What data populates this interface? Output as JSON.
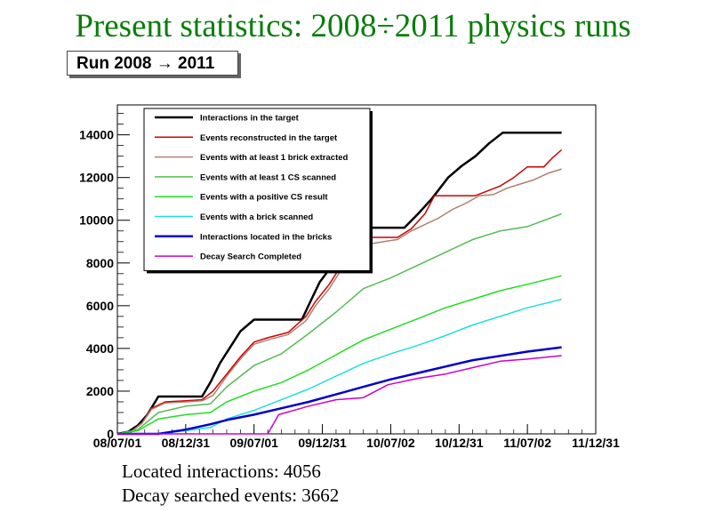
{
  "slide_title": "Present statistics: 2008÷2011 physics runs",
  "run_label": "Run 2008 → 2011",
  "stats": {
    "located": "Located interactions: 4056",
    "decay": "Decay searched events: 3662"
  },
  "chart_data": {
    "type": "line",
    "title": "Run 2008 → 2011",
    "xlabel": "",
    "ylabel": "",
    "x_tick_labels": [
      "08/07/01",
      "08/12/31",
      "09/07/01",
      "09/12/31",
      "10/07/02",
      "10/12/31",
      "11/07/02",
      "11/12/31"
    ],
    "y_ticks": [
      0,
      2000,
      4000,
      6000,
      8000,
      10000,
      12000,
      14000
    ],
    "y_tick_labels": [
      "0",
      "2000",
      "4000",
      "6000",
      "8000",
      "10000",
      "12000",
      "14000"
    ],
    "xlim": [
      0,
      3.5
    ],
    "ylim": [
      0,
      15400
    ],
    "x_unit": "years since 08/07/01",
    "grid": false,
    "legend_position": "top-left",
    "series": [
      {
        "name": "Interactions in the target",
        "color": "#000000",
        "width": 2.5,
        "x": [
          0,
          0.08,
          0.15,
          0.22,
          0.3,
          0.45,
          0.55,
          0.62,
          0.68,
          0.75,
          0.82,
          0.9,
          1.0,
          1.12,
          1.25,
          1.35,
          1.42,
          1.48,
          1.55,
          1.62,
          1.68,
          1.78,
          1.88,
          2.0,
          2.1,
          2.2,
          2.3,
          2.42,
          2.52,
          2.62,
          2.72,
          2.82,
          2.92,
          3.02,
          3.1,
          3.25
        ],
        "values": [
          0,
          100,
          400,
          900,
          1750,
          1750,
          1750,
          1750,
          2400,
          3300,
          4000,
          4800,
          5350,
          5350,
          5350,
          5350,
          6300,
          7100,
          7700,
          8400,
          9050,
          9650,
          9650,
          9650,
          9650,
          10300,
          11000,
          12000,
          12550,
          13000,
          13600,
          14100,
          14100,
          14100,
          14100,
          14100
        ]
      },
      {
        "name": "Events reconstructed in the target",
        "color": "#cc0000",
        "width": 1.5,
        "x": [
          0,
          0.1,
          0.18,
          0.25,
          0.35,
          0.5,
          0.62,
          0.7,
          0.8,
          0.9,
          1.0,
          1.1,
          1.25,
          1.38,
          1.45,
          1.55,
          1.62,
          1.7,
          1.78,
          1.85,
          1.95,
          2.05,
          2.15,
          2.25,
          2.32,
          2.45,
          2.55,
          2.62,
          2.72,
          2.8,
          2.9,
          3.0,
          3.05,
          3.12,
          3.18,
          3.25
        ],
        "values": [
          0,
          100,
          500,
          1200,
          1500,
          1550,
          1600,
          2000,
          2800,
          3600,
          4300,
          4500,
          4750,
          5500,
          6200,
          7000,
          7700,
          8700,
          9200,
          9200,
          9200,
          9200,
          9600,
          10300,
          11150,
          11150,
          11150,
          11150,
          11400,
          11600,
          12000,
          12500,
          12500,
          12500,
          12900,
          13300
        ]
      },
      {
        "name": "Events with at least 1 brick extracted",
        "color": "#b08070",
        "width": 1.5,
        "x": [
          0,
          0.1,
          0.18,
          0.25,
          0.35,
          0.5,
          0.62,
          0.7,
          0.8,
          0.9,
          1.0,
          1.1,
          1.25,
          1.38,
          1.45,
          1.55,
          1.62,
          1.7,
          1.78,
          1.85,
          1.95,
          2.05,
          2.15,
          2.25,
          2.35,
          2.45,
          2.55,
          2.65,
          2.75,
          2.85,
          2.95,
          3.05,
          3.15,
          3.25
        ],
        "values": [
          0,
          100,
          500,
          1150,
          1450,
          1500,
          1550,
          1800,
          2700,
          3500,
          4200,
          4400,
          4650,
          5300,
          6000,
          6800,
          7500,
          8400,
          8800,
          8900,
          9000,
          9100,
          9500,
          9800,
          10100,
          10500,
          10800,
          11150,
          11200,
          11500,
          11700,
          11900,
          12200,
          12400
        ]
      },
      {
        "name": "Events with at least 1 CS scanned",
        "color": "#55bb55",
        "width": 1.5,
        "x": [
          0,
          0.15,
          0.3,
          0.5,
          0.68,
          0.8,
          1.0,
          1.2,
          1.4,
          1.6,
          1.8,
          2.0,
          2.2,
          2.4,
          2.6,
          2.8,
          3.0,
          3.25
        ],
        "values": [
          0,
          200,
          1000,
          1300,
          1400,
          2200,
          3200,
          3750,
          4700,
          5700,
          6800,
          7300,
          7900,
          8500,
          9100,
          9500,
          9700,
          10300
        ]
      },
      {
        "name": "Events with a positive CS result",
        "color": "#22dd22",
        "width": 1.5,
        "x": [
          0,
          0.15,
          0.3,
          0.5,
          0.68,
          0.8,
          1.0,
          1.2,
          1.4,
          1.6,
          1.8,
          2.0,
          2.2,
          2.4,
          2.6,
          2.8,
          3.0,
          3.25
        ],
        "values": [
          0,
          150,
          700,
          900,
          1000,
          1500,
          2000,
          2400,
          3000,
          3700,
          4400,
          4900,
          5400,
          5900,
          6300,
          6700,
          7000,
          7400
        ]
      },
      {
        "name": "Events with a brick scanned",
        "color": "#22dddd",
        "width": 1.5,
        "x": [
          0,
          0.3,
          0.5,
          0.68,
          0.8,
          1.0,
          1.2,
          1.4,
          1.6,
          1.8,
          2.0,
          2.2,
          2.4,
          2.6,
          2.8,
          3.0,
          3.25
        ],
        "values": [
          0,
          0,
          150,
          300,
          700,
          1100,
          1600,
          2100,
          2700,
          3300,
          3750,
          4150,
          4600,
          5100,
          5500,
          5900,
          6300
        ]
      },
      {
        "name": "Interactions located in the bricks",
        "color": "#0000cc",
        "width": 2.5,
        "x": [
          0,
          0.3,
          0.5,
          0.68,
          0.8,
          1.0,
          1.2,
          1.4,
          1.6,
          1.8,
          2.0,
          2.2,
          2.4,
          2.6,
          2.8,
          3.0,
          3.25
        ],
        "values": [
          0,
          0,
          200,
          450,
          650,
          900,
          1200,
          1500,
          1850,
          2200,
          2550,
          2850,
          3150,
          3450,
          3650,
          3850,
          4056
        ]
      },
      {
        "name": "Decay Search Completed",
        "color": "#cc00cc",
        "width": 1.5,
        "x": [
          0,
          0.3,
          0.5,
          0.68,
          0.8,
          1.0,
          1.1,
          1.18,
          1.4,
          1.6,
          1.8,
          1.98,
          2.2,
          2.4,
          2.6,
          2.8,
          3.0,
          3.25
        ],
        "values": [
          0,
          0,
          0,
          0,
          0,
          0,
          0,
          900,
          1300,
          1600,
          1700,
          2300,
          2600,
          2800,
          3100,
          3400,
          3500,
          3662
        ]
      }
    ]
  }
}
